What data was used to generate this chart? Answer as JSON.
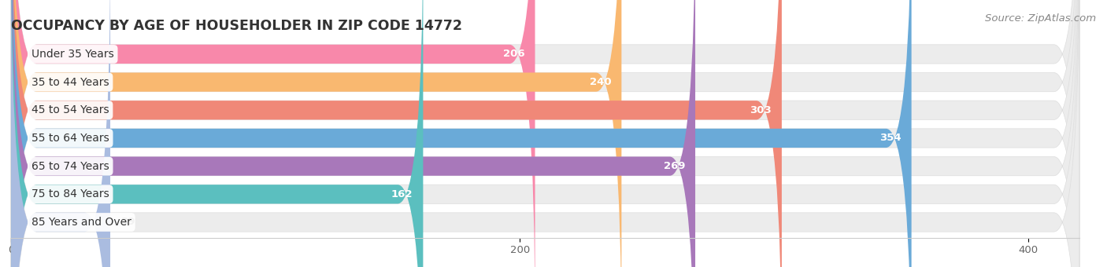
{
  "title": "OCCUPANCY BY AGE OF HOUSEHOLDER IN ZIP CODE 14772",
  "source": "Source: ZipAtlas.com",
  "categories": [
    "Under 35 Years",
    "35 to 44 Years",
    "45 to 54 Years",
    "55 to 64 Years",
    "65 to 74 Years",
    "75 to 84 Years",
    "85 Years and Over"
  ],
  "values": [
    206,
    240,
    303,
    354,
    269,
    162,
    39
  ],
  "bar_colors": [
    "#F888AA",
    "#F9B870",
    "#F08878",
    "#6AAAD8",
    "#A878BA",
    "#5BBFBF",
    "#AABCE0"
  ],
  "xlim": [
    0,
    420
  ],
  "xticks": [
    0,
    200,
    400
  ],
  "background_color": "#ffffff",
  "bar_bg_color": "#ececec",
  "title_fontsize": 12.5,
  "label_fontsize": 10,
  "value_fontsize": 9.5,
  "source_fontsize": 9.5
}
